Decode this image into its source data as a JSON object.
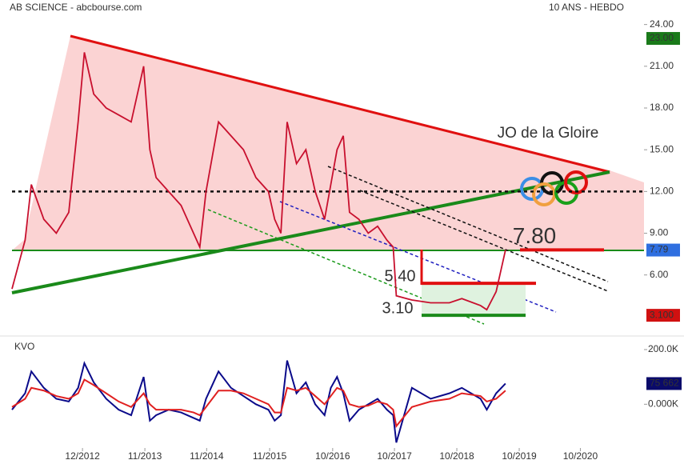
{
  "header": {
    "left": "AB SCIENCE - abcbourse.com",
    "right": "10 ANS - HEBDO"
  },
  "chart_data": [
    {
      "type": "line",
      "annotation": "JO de la Gloire",
      "x": [
        2011.79,
        2012.0,
        2012.1,
        2012.3,
        2012.5,
        2012.7,
        2012.85,
        2012.95,
        2013.1,
        2013.3,
        2013.5,
        2013.7,
        2013.9,
        2014.0,
        2014.1,
        2014.3,
        2014.5,
        2014.7,
        2014.8,
        2014.9,
        2015.1,
        2015.3,
        2015.5,
        2015.7,
        2015.9,
        2016.0,
        2016.1,
        2016.2,
        2016.35,
        2016.5,
        2016.65,
        2016.8,
        2016.9,
        2017.0,
        2017.1,
        2017.2,
        2017.35,
        2017.5,
        2017.65,
        2017.8,
        2017.9,
        2017.95,
        2018.2,
        2018.5,
        2018.8,
        2019.0,
        2019.3,
        2019.4,
        2019.55,
        2019.7
      ],
      "series": [
        {
          "color": "#c8102e",
          "values": [
            5.0,
            8.5,
            12.5,
            10,
            9,
            10.5,
            17,
            22,
            19,
            18,
            17.5,
            17,
            21,
            15,
            13,
            12,
            11,
            9,
            8,
            12,
            17,
            16,
            15,
            13,
            12,
            10,
            9,
            17,
            14,
            15,
            12,
            10,
            12.5,
            15,
            16,
            10.5,
            10,
            9,
            9.5,
            8.5,
            8,
            4.5,
            4.2,
            4.0,
            4.0,
            4.3,
            3.8,
            3.5,
            4.8,
            7.8
          ]
        }
      ],
      "xlim": [
        2011.79,
        2021.92
      ],
      "xticks": [
        {
          "value": 2012.92,
          "label": "12/2012"
        },
        {
          "value": 2013.92,
          "label": "11/2013"
        },
        {
          "value": 2014.91,
          "label": "11/2014"
        },
        {
          "value": 2015.92,
          "label": "11/2015"
        },
        {
          "value": 2016.93,
          "label": "10/2016"
        },
        {
          "value": 2017.92,
          "label": "10/2017"
        },
        {
          "value": 2018.92,
          "label": "10/2018"
        },
        {
          "value": 2019.92,
          "label": "10/2019"
        },
        {
          "value": 2020.9,
          "label": "10/2020"
        }
      ],
      "ylim": [
        1.9,
        24.9
      ],
      "yticks": [
        {
          "value": 6,
          "label": "6.00"
        },
        {
          "value": 9,
          "label": "9.00"
        },
        {
          "value": 12,
          "label": "12.00"
        },
        {
          "value": 15,
          "label": "15.00"
        },
        {
          "value": 18,
          "label": "18.00"
        },
        {
          "value": 21,
          "label": "21.00"
        },
        {
          "value": 24,
          "label": "24.00"
        }
      ],
      "levels": [
        {
          "label": "7.80",
          "value": 7.8,
          "color": "#e01010"
        },
        {
          "label": "5.40",
          "value": 5.4,
          "color": "#e01010"
        },
        {
          "label": "3.10",
          "value": 3.1,
          "color": "#1a8a1a"
        }
      ],
      "price_tags": [
        {
          "label": "23.00",
          "value": 23,
          "color": "#1a7a1a"
        },
        {
          "label": "7.79",
          "value": 7.79,
          "color": "#2f6fe0"
        },
        {
          "label": "3.100",
          "value": 3.1,
          "color": "#d01010"
        }
      ]
    },
    {
      "type": "line",
      "title": "KVO",
      "series": [
        {
          "color": "#0a0a8a",
          "values": [
            -20000,
            40000,
            120000,
            60000,
            20000,
            10000,
            60000,
            150000,
            80000,
            20000,
            -20000,
            -40000,
            100000,
            -60000,
            -40000,
            -20000,
            -30000,
            -50000,
            -60000,
            20000,
            120000,
            60000,
            30000,
            0,
            -20000,
            -60000,
            -40000,
            160000,
            40000,
            80000,
            0,
            -40000,
            60000,
            100000,
            40000,
            -60000,
            -20000,
            0,
            20000,
            -20000,
            -40000,
            -140000,
            60000,
            20000,
            40000,
            60000,
            20000,
            -20000,
            40000,
            75662
          ],
          "last_label": "75 662"
        },
        {
          "color": "#e02020",
          "values": [
            -10000,
            20000,
            60000,
            50000,
            30000,
            20000,
            40000,
            90000,
            70000,
            40000,
            10000,
            -10000,
            40000,
            0,
            -20000,
            -20000,
            -20000,
            -30000,
            -40000,
            -10000,
            50000,
            50000,
            40000,
            20000,
            0,
            -30000,
            -30000,
            60000,
            50000,
            60000,
            30000,
            0,
            30000,
            60000,
            50000,
            0,
            -10000,
            -5000,
            10000,
            0,
            -20000,
            -80000,
            -10000,
            10000,
            20000,
            40000,
            30000,
            10000,
            20000,
            50000
          ]
        }
      ],
      "ylim": [
        -160000,
        235000
      ],
      "yticks": [
        {
          "value": 0,
          "label": "0.000K"
        },
        {
          "value": 200000,
          "label": "200.0K"
        }
      ]
    }
  ]
}
